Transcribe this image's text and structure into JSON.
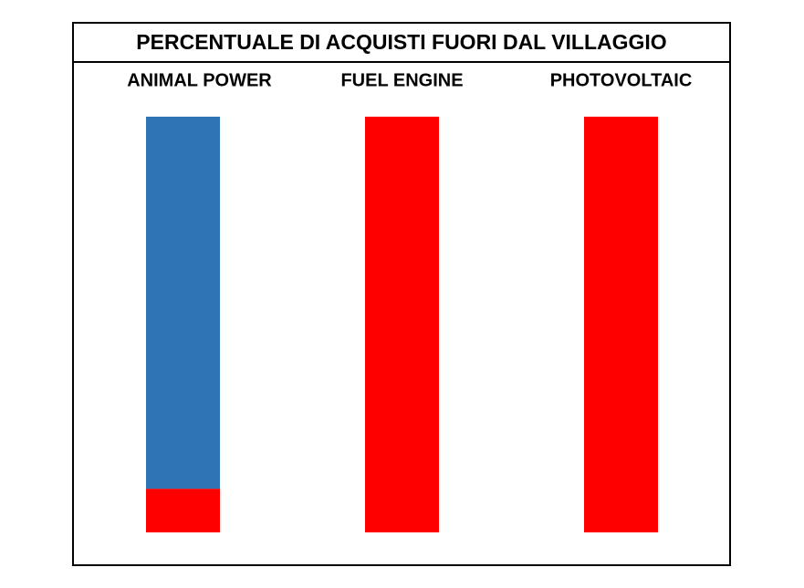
{
  "chart_data": {
    "type": "stacked-bar",
    "title": "PERCENTUALE DI ACQUISTI FUORI DAL VILLAGGIO",
    "categories": [
      "ANIMAL POWER",
      "FUEL ENGINE",
      "PHOTOVOLTAIC"
    ],
    "series": [
      {
        "color": "#ff0000",
        "values": [
          10.5,
          100,
          100
        ]
      },
      {
        "color": "#2e75b6",
        "values": [
          89.5,
          0,
          0
        ]
      }
    ],
    "ylim": [
      0,
      100
    ]
  }
}
